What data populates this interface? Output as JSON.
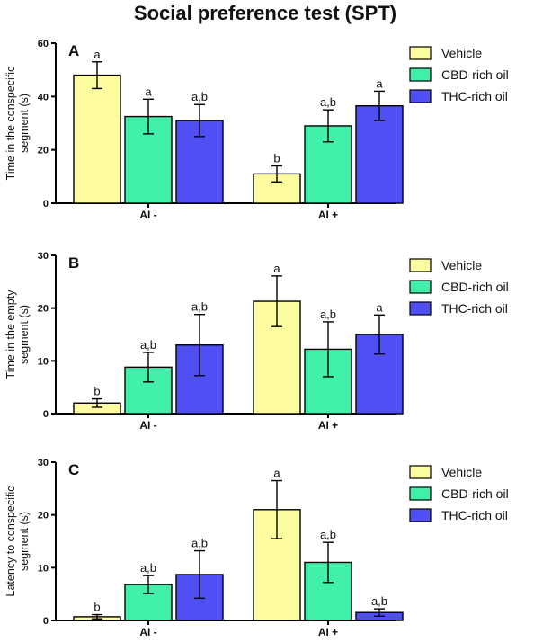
{
  "title": "Social preference test (SPT)",
  "colors": {
    "Vehicle": "#fdfc9f",
    "CBD-rich oil": "#41f0a8",
    "THC-rich oil": "#4f4ff4"
  },
  "chart_data": [
    {
      "type": "bar",
      "panel": "A",
      "ylabel_lines": [
        "Time in the conspecific",
        "segment (s)"
      ],
      "ylim": [
        0,
        60
      ],
      "yticks": [
        0,
        20,
        40,
        60
      ],
      "categories": [
        "AI -",
        "AI +"
      ],
      "legend": "right",
      "series": [
        {
          "name": "Vehicle",
          "values": [
            48,
            11
          ],
          "errors": [
            5,
            3
          ],
          "labels": [
            "a",
            "b"
          ]
        },
        {
          "name": "CBD-rich oil",
          "values": [
            32.5,
            29
          ],
          "errors": [
            6.5,
            6
          ],
          "labels": [
            "a",
            "a,b"
          ]
        },
        {
          "name": "THC-rich oil",
          "values": [
            31,
            36.5
          ],
          "errors": [
            6,
            5.5
          ],
          "labels": [
            "a,b",
            "a"
          ]
        }
      ]
    },
    {
      "type": "bar",
      "panel": "B",
      "ylabel_lines": [
        "Time in the empty",
        "segment (s)"
      ],
      "ylim": [
        0,
        30
      ],
      "yticks": [
        0,
        10,
        20,
        30
      ],
      "categories": [
        "AI -",
        "AI +"
      ],
      "legend": "right",
      "series": [
        {
          "name": "Vehicle",
          "values": [
            2,
            21.3
          ],
          "errors": [
            0.8,
            4.8
          ],
          "labels": [
            "b",
            "a"
          ]
        },
        {
          "name": "CBD-rich oil",
          "values": [
            8.8,
            12.2
          ],
          "errors": [
            2.8,
            5.2
          ],
          "labels": [
            "a,b",
            "a,b"
          ]
        },
        {
          "name": "THC-rich oil",
          "values": [
            13,
            15
          ],
          "errors": [
            5.8,
            3.7
          ],
          "labels": [
            "a,b",
            "a"
          ]
        }
      ]
    },
    {
      "type": "bar",
      "panel": "C",
      "ylabel_lines": [
        "Latency to conspecific",
        "segment (s)"
      ],
      "ylim": [
        0,
        30
      ],
      "yticks": [
        0,
        10,
        20,
        30
      ],
      "categories": [
        "AI -",
        "AI +"
      ],
      "legend": "right",
      "series": [
        {
          "name": "Vehicle",
          "values": [
            0.7,
            21
          ],
          "errors": [
            0.4,
            5.5
          ],
          "labels": [
            "b",
            "a"
          ]
        },
        {
          "name": "CBD-rich oil",
          "values": [
            6.8,
            11
          ],
          "errors": [
            1.7,
            3.8
          ],
          "labels": [
            "a,b",
            "a,b"
          ]
        },
        {
          "name": "THC-rich oil",
          "values": [
            8.7,
            1.5
          ],
          "errors": [
            4.5,
            0.7
          ],
          "labels": [
            "a,b",
            "a,b"
          ]
        }
      ]
    }
  ]
}
